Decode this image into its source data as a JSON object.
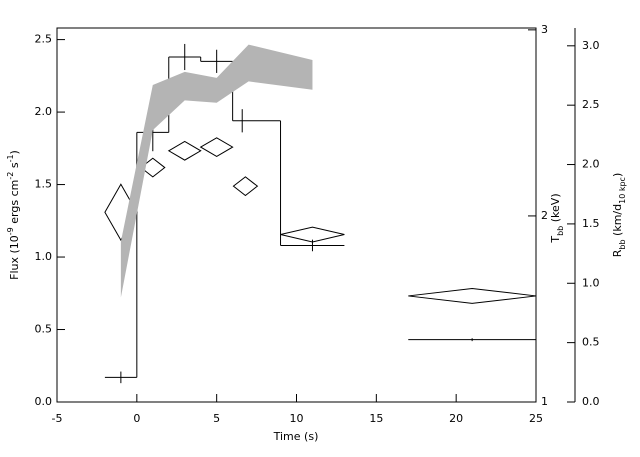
{
  "chart_data": {
    "type": "combo",
    "xlabel": "Time (s)",
    "ylabel": [
      "Flux (10",
      "-9",
      " ergs cm",
      "-2",
      " s",
      "-1",
      ")"
    ],
    "y2label": [
      "T",
      "bb",
      " (keV)"
    ],
    "y3label": [
      "R",
      "bb",
      " (km/d",
      "10 kpc",
      ")"
    ],
    "xlim": [
      -5,
      25
    ],
    "xticks": [
      -5,
      0,
      5,
      10,
      15,
      20,
      25
    ],
    "ylim": [
      0,
      2.58
    ],
    "yticks": [
      {
        "value": 0,
        "label": "0.0"
      },
      {
        "value": 0.5,
        "label": "0.5"
      },
      {
        "value": 1,
        "label": "1.0"
      },
      {
        "value": 1.5,
        "label": "1.5"
      },
      {
        "value": 2,
        "label": "2.0"
      },
      {
        "value": 2.5,
        "label": "2.5"
      }
    ],
    "y2lim": [
      1,
      3.01
    ],
    "y2ticks": [
      1,
      2,
      3
    ],
    "y3lim": [
      0,
      3.15
    ],
    "y3ticks": [
      {
        "value": 0,
        "label": "0.0"
      },
      {
        "value": 0.5,
        "label": "0.5"
      },
      {
        "value": 1,
        "label": "1.0"
      },
      {
        "value": 1.5,
        "label": "1.5"
      },
      {
        "value": 2,
        "label": "2.0"
      },
      {
        "value": 2.5,
        "label": "2.5"
      },
      {
        "value": 3,
        "label": "3.0"
      }
    ],
    "series": [
      {
        "type": "step",
        "color": "#000000",
        "x": [
          -1,
          1,
          3,
          5,
          6.6,
          11,
          21
        ],
        "x_start": [
          -2,
          0,
          2,
          4,
          6,
          9,
          17
        ],
        "x_end": [
          0,
          2,
          4,
          6,
          9,
          13,
          25
        ],
        "values": [
          0.17,
          1.86,
          2.38,
          2.35,
          1.94,
          1.08,
          0.43
        ],
        "yerr": [
          0.04,
          0.13,
          0.09,
          0.08,
          0.08,
          0.04,
          0.01
        ]
      },
      {
        "type": "diamond",
        "axis": "y2",
        "color": "#000000",
        "x": [
          -1,
          1,
          3,
          5,
          6.8,
          11,
          21
        ],
        "xerr": [
          1,
          0.75,
          1,
          1,
          0.75,
          2,
          4
        ],
        "values": [
          2.02,
          2.26,
          2.35,
          2.37,
          2.16,
          1.9,
          1.57
        ],
        "yerr": [
          0.15,
          0.05,
          0.05,
          0.05,
          0.05,
          0.04,
          0.04
        ]
      },
      {
        "type": "band",
        "axis": "y3",
        "color": "#b4b4b4",
        "x": [
          -1,
          1,
          3,
          5,
          7,
          11
        ],
        "lower": [
          0.88,
          2.29,
          2.54,
          2.52,
          2.7,
          2.63
        ],
        "upper": [
          1.35,
          2.67,
          2.78,
          2.73,
          3.01,
          2.88
        ]
      }
    ]
  }
}
